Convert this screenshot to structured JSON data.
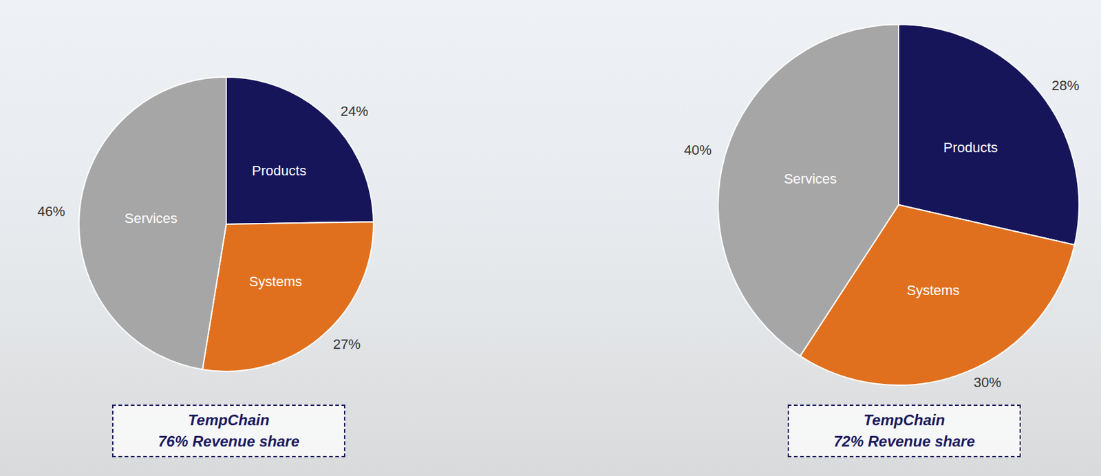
{
  "chart_data": [
    {
      "type": "pie",
      "title": "TempChain",
      "subtitle": "76% Revenue share",
      "categories": [
        "Products",
        "Systems",
        "Services"
      ],
      "values": [
        24,
        27,
        46
      ],
      "value_labels": [
        "24%",
        "27%",
        "46%"
      ],
      "colors": [
        "#16155a",
        "#e0701e",
        "#a6a6a6"
      ],
      "data_labels": true
    },
    {
      "type": "pie",
      "title": "TempChain",
      "subtitle": "72% Revenue share",
      "categories": [
        "Products",
        "Systems",
        "Services"
      ],
      "values": [
        28,
        30,
        40
      ],
      "value_labels": [
        "28%",
        "30%",
        "40%"
      ],
      "colors": [
        "#16155a",
        "#e0701e",
        "#a6a6a6"
      ],
      "data_labels": true
    }
  ]
}
